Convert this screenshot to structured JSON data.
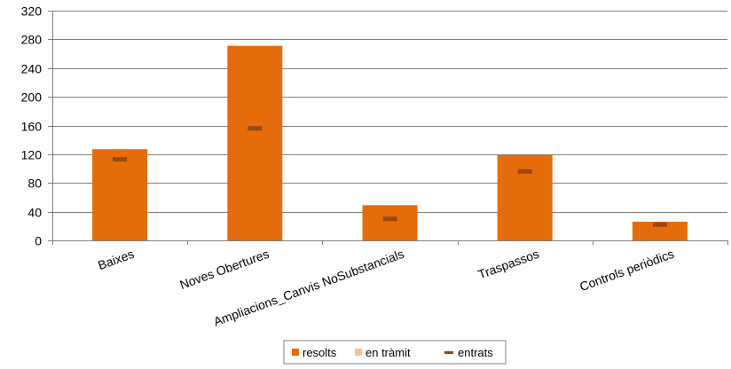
{
  "chart_data": {
    "type": "bar",
    "categories": [
      "Baixes",
      "Noves Obertures",
      "Ampliacions_Canvis NoSubstancials",
      "Traspassos",
      "Controls periòdics"
    ],
    "series": [
      {
        "name": "resolts",
        "type": "bar",
        "color": "#E46C0A",
        "values": [
          127,
          271,
          49,
          119,
          26
        ]
      },
      {
        "name": "en tràmit",
        "type": "bar",
        "color": "#FAC090",
        "values": [
          0,
          0,
          0,
          0,
          0
        ]
      },
      {
        "name": "entrats",
        "type": "marker",
        "color": "#984807",
        "values": [
          113,
          156,
          30,
          96,
          22
        ]
      }
    ],
    "yticks": [
      "0",
      "40",
      "80",
      "120",
      "160",
      "200",
      "240",
      "280",
      "320"
    ],
    "ylim": [
      0,
      320
    ],
    "grid": true,
    "legend_position": "bottom"
  }
}
